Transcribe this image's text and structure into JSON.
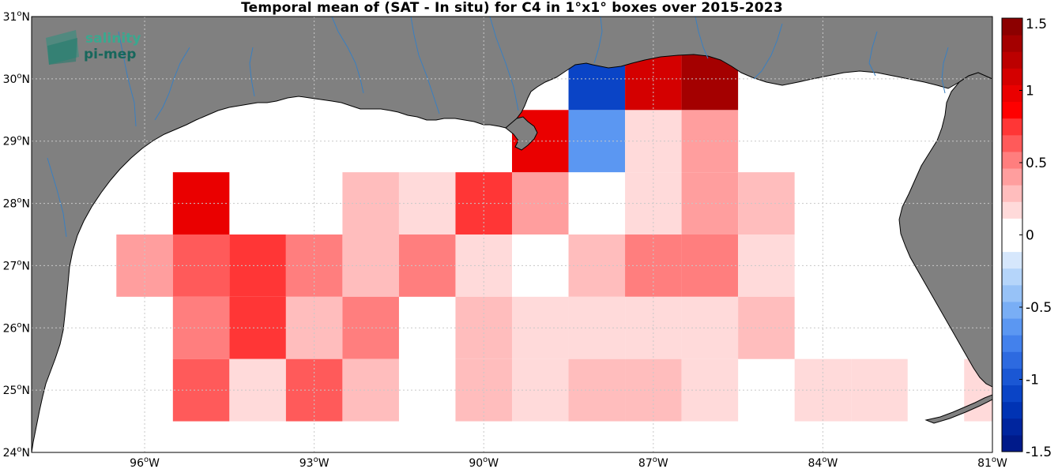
{
  "title": "Temporal mean of (SAT - In situ) for C4 in 1°x1° boxes over 2015-2023",
  "logo": {
    "line1": "salinity",
    "line2": "pi-mep"
  },
  "colors": {
    "land": "#808080",
    "ocean": "#ffffff",
    "river": "#3a7fc0",
    "grid": "#c8c8c8"
  },
  "axes": {
    "lon_range": [
      -98,
      -81
    ],
    "lat_range": [
      24,
      31
    ],
    "x_ticks": [
      {
        "lon": -96,
        "deg": "96",
        "dir": "W"
      },
      {
        "lon": -93,
        "deg": "93",
        "dir": "W"
      },
      {
        "lon": -90,
        "deg": "90",
        "dir": "W"
      },
      {
        "lon": -87,
        "deg": "87",
        "dir": "W"
      },
      {
        "lon": -84,
        "deg": "84",
        "dir": "W"
      },
      {
        "lon": -81,
        "deg": "81",
        "dir": "W"
      }
    ],
    "y_ticks": [
      {
        "lat": 24,
        "deg": "24",
        "dir": "N"
      },
      {
        "lat": 25,
        "deg": "25",
        "dir": "N"
      },
      {
        "lat": 26,
        "deg": "26",
        "dir": "N"
      },
      {
        "lat": 27,
        "deg": "27",
        "dir": "N"
      },
      {
        "lat": 28,
        "deg": "28",
        "dir": "N"
      },
      {
        "lat": 29,
        "deg": "29",
        "dir": "N"
      },
      {
        "lat": 30,
        "deg": "30",
        "dir": "N"
      },
      {
        "lat": 31,
        "deg": "31",
        "dir": "N"
      }
    ],
    "grid": true
  },
  "colorbar": {
    "range": [
      -1.5,
      1.5
    ],
    "ticks": [
      "1.5",
      "1",
      "0.5",
      "0",
      "-0.5",
      "-1",
      "-1.5"
    ],
    "tick_values": [
      1.5,
      1,
      0.5,
      0,
      -0.5,
      -1,
      -1.5
    ],
    "colors_bottom_to_top": [
      "#001a8a",
      "#00259e",
      "#0033b4",
      "#0a44c6",
      "#1a57d4",
      "#2d6ae0",
      "#4381ec",
      "#5b97f2",
      "#79aef5",
      "#97c2f7",
      "#b5d5fa",
      "#d6e7fc",
      "#ffffff",
      "#ffffff",
      "#ffdada",
      "#ffbdbd",
      "#ff9e9e",
      "#ff7e7e",
      "#ff5a5a",
      "#ff3636",
      "#ff0000",
      "#ea0000",
      "#d40000",
      "#bc0000",
      "#a40000",
      "#8c0000"
    ]
  },
  "chart_data": {
    "type": "heatmap",
    "title": "Temporal mean of (SAT - In situ) for C4 in 1°x1° boxes over 2015-2023",
    "xlabel": "",
    "ylabel": "",
    "value_range": [
      -1.5,
      1.5
    ],
    "box_size_deg": 1,
    "cells": [
      {
        "lon": -95,
        "lat": 28,
        "value": 0.95
      },
      {
        "lon": -92,
        "lat": 28,
        "value": 0.3
      },
      {
        "lon": -91,
        "lat": 28,
        "value": 0.15
      },
      {
        "lon": -90,
        "lat": 28,
        "value": 0.7
      },
      {
        "lon": -89,
        "lat": 28,
        "value": 0.35
      },
      {
        "lon": -88,
        "lat": 28,
        "value": 0.0
      },
      {
        "lon": -87,
        "lat": 28,
        "value": 0.15
      },
      {
        "lon": -86,
        "lat": 28,
        "value": 0.35
      },
      {
        "lon": -85,
        "lat": 28,
        "value": 0.3
      },
      {
        "lon": -89,
        "lat": 29,
        "value": 0.95
      },
      {
        "lon": -88,
        "lat": 29,
        "value": -0.65
      },
      {
        "lon": -87,
        "lat": 29,
        "value": 0.15
      },
      {
        "lon": -86,
        "lat": 29,
        "value": 0.45
      },
      {
        "lon": -88,
        "lat": 30,
        "value": -1.15
      },
      {
        "lon": -87,
        "lat": 30,
        "value": 1.05
      },
      {
        "lon": -86,
        "lat": 30,
        "value": 1.35
      },
      {
        "lon": -96,
        "lat": 27,
        "value": 0.4
      },
      {
        "lon": -95,
        "lat": 27,
        "value": 0.6
      },
      {
        "lon": -94,
        "lat": 27,
        "value": 0.75
      },
      {
        "lon": -93,
        "lat": 27,
        "value": 0.5
      },
      {
        "lon": -92,
        "lat": 27,
        "value": 0.3
      },
      {
        "lon": -91,
        "lat": 27,
        "value": 0.5
      },
      {
        "lon": -90,
        "lat": 27,
        "value": 0.15
      },
      {
        "lon": -89,
        "lat": 27,
        "value": 0.0
      },
      {
        "lon": -88,
        "lat": 27,
        "value": 0.3
      },
      {
        "lon": -87,
        "lat": 27,
        "value": 0.5
      },
      {
        "lon": -86,
        "lat": 27,
        "value": 0.5
      },
      {
        "lon": -85,
        "lat": 27,
        "value": 0.15
      },
      {
        "lon": -95,
        "lat": 26,
        "value": 0.5
      },
      {
        "lon": -94,
        "lat": 26,
        "value": 0.75
      },
      {
        "lon": -93,
        "lat": 26,
        "value": 0.3
      },
      {
        "lon": -92,
        "lat": 26,
        "value": 0.5
      },
      {
        "lon": -90,
        "lat": 26,
        "value": 0.25
      },
      {
        "lon": -89,
        "lat": 26,
        "value": 0.15
      },
      {
        "lon": -88,
        "lat": 26,
        "value": 0.15
      },
      {
        "lon": -87,
        "lat": 26,
        "value": 0.15
      },
      {
        "lon": -86,
        "lat": 26,
        "value": 0.15
      },
      {
        "lon": -85,
        "lat": 26,
        "value": 0.3
      },
      {
        "lon": -95,
        "lat": 25,
        "value": 0.6
      },
      {
        "lon": -94,
        "lat": 25,
        "value": 0.15
      },
      {
        "lon": -93,
        "lat": 25,
        "value": 0.6
      },
      {
        "lon": -92,
        "lat": 25,
        "value": 0.3
      },
      {
        "lon": -90,
        "lat": 25,
        "value": 0.25
      },
      {
        "lon": -89,
        "lat": 25,
        "value": 0.15
      },
      {
        "lon": -88,
        "lat": 25,
        "value": 0.25
      },
      {
        "lon": -87,
        "lat": 25,
        "value": 0.25
      },
      {
        "lon": -86,
        "lat": 25,
        "value": 0.15
      },
      {
        "lon": -84,
        "lat": 25,
        "value": 0.15
      },
      {
        "lon": -83,
        "lat": 25,
        "value": 0.15
      },
      {
        "lon": -81,
        "lat": 25,
        "value": 0.15
      }
    ]
  }
}
